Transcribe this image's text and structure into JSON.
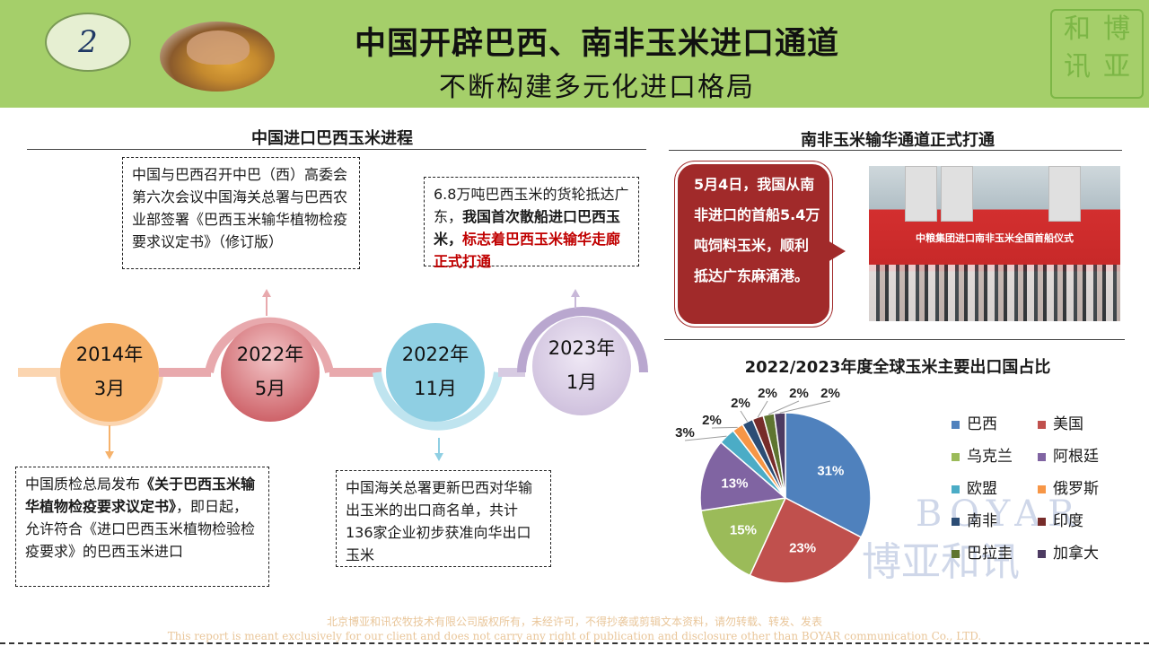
{
  "header": {
    "slide_number": "2",
    "title": "中国开辟巴西、南非玉米进口通道",
    "subtitle": "不断构建多元化进口格局",
    "logo_chars": [
      "和",
      "博",
      "讯",
      "亚"
    ]
  },
  "timeline": {
    "section_title": "中国进口巴西玉米进程",
    "nodes": [
      {
        "year": "2014年",
        "month": "3月",
        "color": "#f6b26b"
      },
      {
        "year": "2022年",
        "month": "5月",
        "color": "#c9555c"
      },
      {
        "year": "2022年",
        "month": "11月",
        "color": "#8fcfe3"
      },
      {
        "year": "2023年",
        "month": "1月",
        "color": "#c8b8d8"
      }
    ],
    "box_2014": {
      "pre": "中国质检总局发布",
      "bold": "《关于巴西玉米输华植物检疫要求议定书》",
      "post": "，即日起，允许符合《进口巴西玉米植物检验检疫要求》的巴西玉米进口"
    },
    "box_2022_5": {
      "text": "中国与巴西召开中巴（西）高委会第六次会议中国海关总署与巴西农业部签署《巴西玉米输华植物检疫要求议定书》（修订版）"
    },
    "box_2022_11": {
      "text": "中国海关总署更新巴西对华输出玉米的出口商名单，共计136家企业初步获准向华出口玉米"
    },
    "box_2023_1": {
      "pre": "6.8万吨巴西玉米的货轮抵达广东，",
      "bold": "我国首次散船进口巴西玉米，",
      "red": "标志着巴西玉米输华走廊正式打通"
    }
  },
  "south_africa": {
    "section_title": "南非玉米输华通道正式打通",
    "callout": "5月4日，我国从南非进口的首船5.4万吨饲料玉米，顺利抵达广东麻涌港。",
    "photo_banner": "中粮集团进口南非玉米全国首船仪式"
  },
  "chart_data": {
    "type": "pie",
    "title": "2022/2023年度全球玉米主要出口国占比",
    "legend_position": "right",
    "slices": [
      {
        "name": "巴西",
        "value": 31,
        "label": "31%",
        "color": "#4f81bd"
      },
      {
        "name": "美国",
        "value": 23,
        "label": "23%",
        "color": "#c0504d"
      },
      {
        "name": "乌克兰",
        "value": 15,
        "label": "15%",
        "color": "#9bbb59"
      },
      {
        "name": "阿根廷",
        "value": 13,
        "label": "13%",
        "color": "#8064a2"
      },
      {
        "name": "欧盟",
        "value": 3,
        "label": "3%",
        "color": "#4bacc6"
      },
      {
        "name": "俄罗斯",
        "value": 2,
        "label": "2%",
        "color": "#f79646"
      },
      {
        "name": "南非",
        "value": 2,
        "label": "2%",
        "color": "#2c4d75"
      },
      {
        "name": "印度",
        "value": 2,
        "label": "2%",
        "color": "#772c2a"
      },
      {
        "name": "巴拉圭",
        "value": 2,
        "label": "2%",
        "color": "#5f7530"
      },
      {
        "name": "加拿大",
        "value": 2,
        "label": "2%",
        "color": "#4d3b62"
      }
    ]
  },
  "watermark": {
    "latin": "BOYAR",
    "chinese": "博亚和讯"
  },
  "footer": {
    "line1": "北京博亚和讯农牧技术有限公司版权所有，未经许可，不得抄袭或剪辑文本资料，请勿转载、转发、发表",
    "line2": "This report is meant exclusively for our client and does not carry any right of publication and disclosure other than BOYAR communication Co., LTD."
  }
}
